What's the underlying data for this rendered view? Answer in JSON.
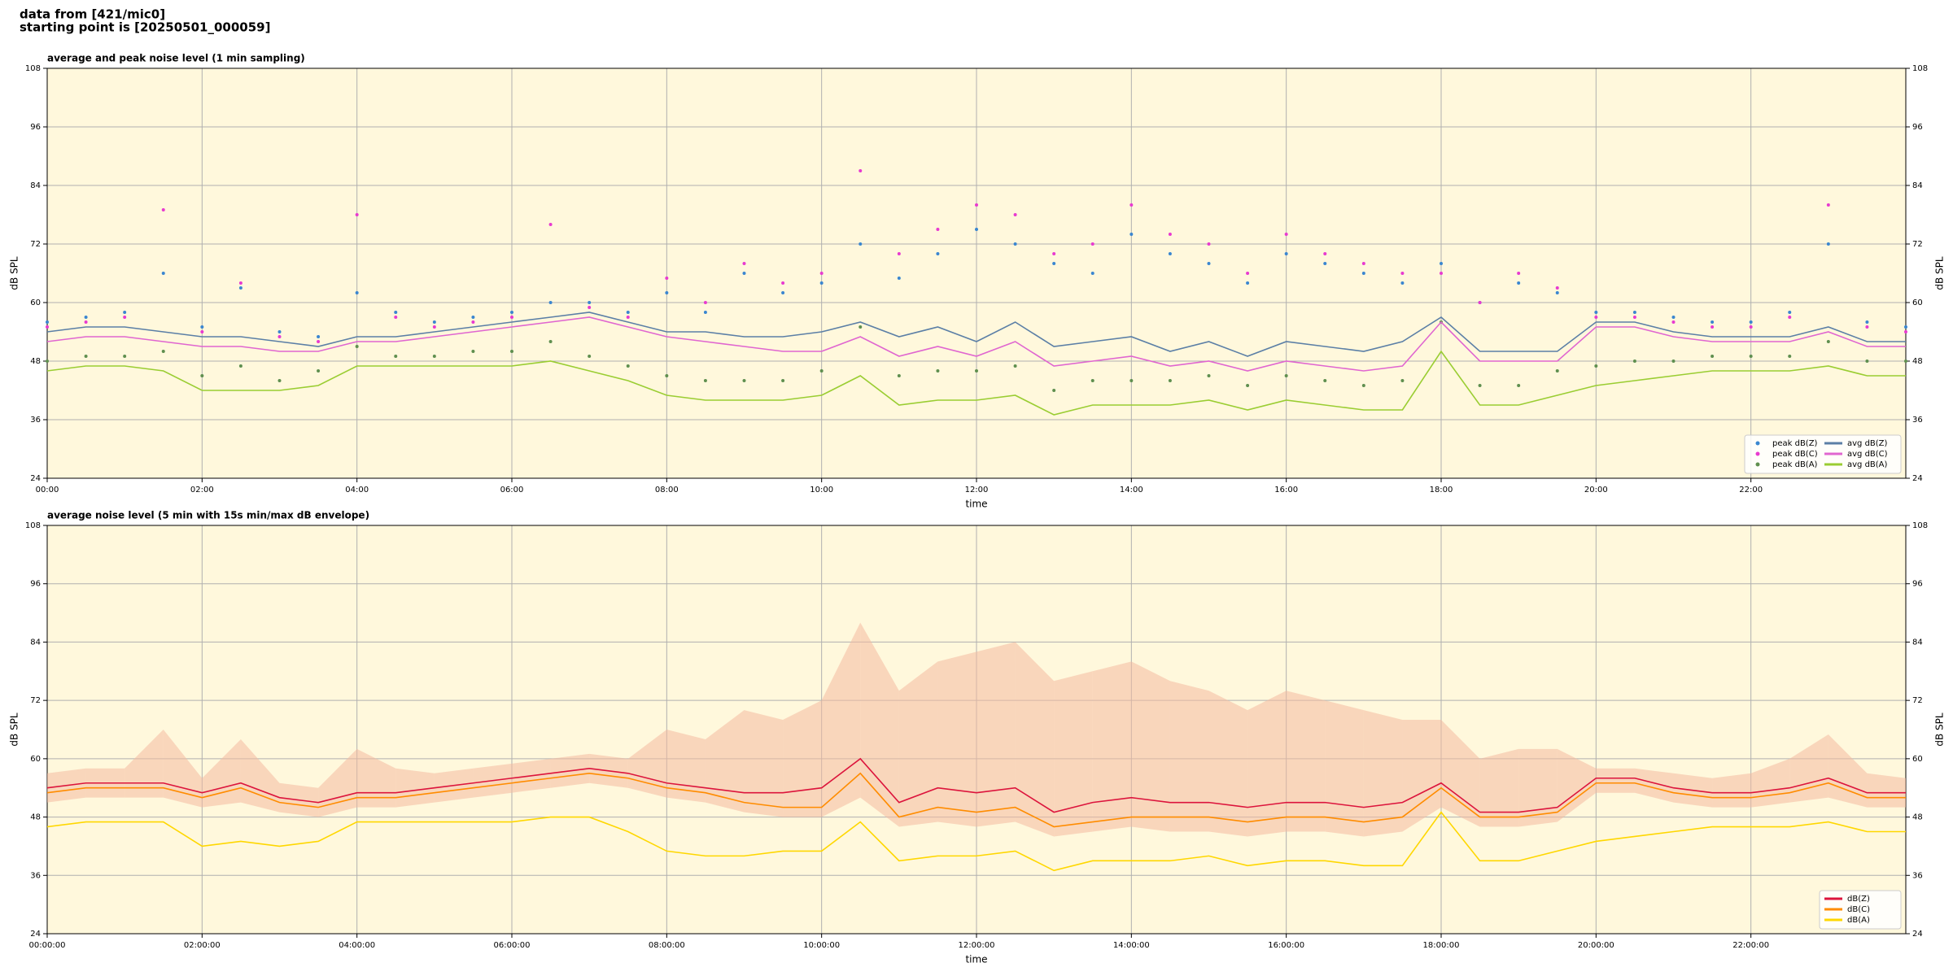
{
  "header": {
    "source": "data from [421/mic0]",
    "start": "starting point is [20250501_000059]"
  },
  "chart_data": [
    {
      "type": "line",
      "title": "average and peak noise level (1 min sampling)",
      "xlabel": "time",
      "ylabel": "dB SPL",
      "y2label": "dB SPL",
      "background": "#fff8dc",
      "grid": true,
      "legend": "lower right",
      "legend_columns": 2,
      "xlim": [
        0,
        24
      ],
      "ylim": [
        24,
        108
      ],
      "yticks": [
        24,
        36,
        48,
        60,
        72,
        84,
        96,
        108
      ],
      "xticks": [
        {
          "value": 0,
          "label": "00:00"
        },
        {
          "value": 2,
          "label": "02:00"
        },
        {
          "value": 4,
          "label": "04:00"
        },
        {
          "value": 6,
          "label": "06:00"
        },
        {
          "value": 8,
          "label": "08:00"
        },
        {
          "value": 10,
          "label": "10:00"
        },
        {
          "value": 12,
          "label": "12:00"
        },
        {
          "value": 14,
          "label": "14:00"
        },
        {
          "value": 16,
          "label": "16:00"
        },
        {
          "value": 18,
          "label": "18:00"
        },
        {
          "value": 20,
          "label": "20:00"
        },
        {
          "value": 22,
          "label": "22:00"
        }
      ],
      "x": [
        0,
        0.5,
        1,
        1.5,
        2,
        2.5,
        3,
        3.5,
        4,
        4.5,
        5,
        5.5,
        6,
        6.5,
        7,
        7.5,
        8,
        8.5,
        9,
        9.5,
        10,
        10.5,
        11,
        11.5,
        12,
        12.5,
        13,
        13.5,
        14,
        14.5,
        15,
        15.5,
        16,
        16.5,
        17,
        17.5,
        18,
        18.5,
        19,
        19.5,
        20,
        20.5,
        21,
        21.5,
        22,
        22.5,
        23,
        23.5,
        24
      ],
      "series": [
        {
          "name": "peak dB(Z)",
          "style": "points",
          "color": "#3a86d0",
          "values": [
            56,
            57,
            58,
            66,
            55,
            63,
            54,
            53,
            62,
            58,
            56,
            57,
            58,
            60,
            60,
            58,
            62,
            58,
            66,
            62,
            64,
            72,
            65,
            70,
            75,
            72,
            68,
            66,
            74,
            70,
            68,
            64,
            70,
            68,
            66,
            64,
            68,
            60,
            64,
            62,
            58,
            58,
            57,
            56,
            56,
            58,
            72,
            56,
            55
          ]
        },
        {
          "name": "peak dB(C)",
          "style": "points",
          "color": "#e83ad0",
          "values": [
            55,
            56,
            57,
            79,
            54,
            64,
            53,
            52,
            78,
            57,
            55,
            56,
            57,
            76,
            59,
            57,
            65,
            60,
            68,
            64,
            66,
            87,
            70,
            75,
            80,
            78,
            70,
            72,
            80,
            74,
            72,
            66,
            74,
            70,
            68,
            66,
            66,
            60,
            66,
            63,
            57,
            57,
            56,
            55,
            55,
            57,
            80,
            55,
            54
          ]
        },
        {
          "name": "peak dB(A)",
          "style": "points",
          "color": "#5f8f4f",
          "values": [
            48,
            49,
            49,
            50,
            45,
            47,
            44,
            46,
            51,
            49,
            49,
            50,
            50,
            52,
            49,
            47,
            45,
            44,
            44,
            44,
            46,
            55,
            45,
            46,
            46,
            47,
            42,
            44,
            44,
            44,
            45,
            43,
            45,
            44,
            43,
            44,
            56,
            43,
            43,
            46,
            47,
            48,
            48,
            49,
            49,
            49,
            52,
            48,
            48
          ]
        },
        {
          "name": "avg dB(Z)",
          "style": "line",
          "color": "#5b7fa6",
          "values": [
            54,
            55,
            55,
            54,
            53,
            53,
            52,
            51,
            53,
            53,
            54,
            55,
            56,
            57,
            58,
            56,
            54,
            54,
            53,
            53,
            54,
            56,
            53,
            55,
            52,
            56,
            51,
            52,
            53,
            50,
            52,
            49,
            52,
            51,
            50,
            52,
            57,
            50,
            50,
            50,
            56,
            56,
            54,
            53,
            53,
            53,
            55,
            52,
            52
          ]
        },
        {
          "name": "avg dB(C)",
          "style": "line",
          "color": "#e066d0",
          "values": [
            52,
            53,
            53,
            52,
            51,
            51,
            50,
            50,
            52,
            52,
            53,
            54,
            55,
            56,
            57,
            55,
            53,
            52,
            51,
            50,
            50,
            53,
            49,
            51,
            49,
            52,
            47,
            48,
            49,
            47,
            48,
            46,
            48,
            47,
            46,
            47,
            56,
            48,
            48,
            48,
            55,
            55,
            53,
            52,
            52,
            52,
            54,
            51,
            51
          ]
        },
        {
          "name": "avg dB(A)",
          "style": "line",
          "color": "#9acd32",
          "values": [
            46,
            47,
            47,
            46,
            42,
            42,
            42,
            43,
            47,
            47,
            47,
            47,
            47,
            48,
            46,
            44,
            41,
            40,
            40,
            40,
            41,
            45,
            39,
            40,
            40,
            41,
            37,
            39,
            39,
            39,
            40,
            38,
            40,
            39,
            38,
            38,
            50,
            39,
            39,
            41,
            43,
            44,
            45,
            46,
            46,
            46,
            47,
            45,
            45
          ]
        }
      ]
    },
    {
      "type": "line",
      "title": "average noise level (5 min with 15s min/max dB envelope)",
      "xlabel": "time",
      "ylabel": "dB SPL",
      "y2label": "dB SPL",
      "background": "#fff8dc",
      "grid": true,
      "legend": "lower right",
      "legend_columns": 1,
      "xlim": [
        0,
        24
      ],
      "ylim": [
        24,
        108
      ],
      "yticks": [
        24,
        36,
        48,
        60,
        72,
        84,
        96,
        108
      ],
      "xticks": [
        {
          "value": 0,
          "label": "00:00:00"
        },
        {
          "value": 2,
          "label": "02:00:00"
        },
        {
          "value": 4,
          "label": "04:00:00"
        },
        {
          "value": 6,
          "label": "06:00:00"
        },
        {
          "value": 8,
          "label": "08:00:00"
        },
        {
          "value": 10,
          "label": "10:00:00"
        },
        {
          "value": 12,
          "label": "12:00:00"
        },
        {
          "value": 14,
          "label": "14:00:00"
        },
        {
          "value": 16,
          "label": "16:00:00"
        },
        {
          "value": 18,
          "label": "18:00:00"
        },
        {
          "value": 20,
          "label": "20:00:00"
        },
        {
          "value": 22,
          "label": "22:00:00"
        }
      ],
      "x": [
        0,
        0.5,
        1,
        1.5,
        2,
        2.5,
        3,
        3.5,
        4,
        4.5,
        5,
        5.5,
        6,
        6.5,
        7,
        7.5,
        8,
        8.5,
        9,
        9.5,
        10,
        10.5,
        11,
        11.5,
        12,
        12.5,
        13,
        13.5,
        14,
        14.5,
        15,
        15.5,
        16,
        16.5,
        17,
        17.5,
        18,
        18.5,
        19,
        19.5,
        20,
        20.5,
        21,
        21.5,
        22,
        22.5,
        23,
        23.5,
        24
      ],
      "envelope": {
        "color": "#f4b9a0",
        "low": [
          51,
          52,
          52,
          52,
          50,
          51,
          49,
          48,
          50,
          50,
          51,
          52,
          53,
          54,
          55,
          54,
          52,
          51,
          49,
          48,
          48,
          52,
          46,
          47,
          46,
          47,
          44,
          45,
          46,
          45,
          45,
          44,
          45,
          45,
          44,
          45,
          50,
          46,
          46,
          47,
          53,
          53,
          51,
          50,
          50,
          51,
          52,
          50,
          50
        ],
        "high": [
          57,
          58,
          58,
          66,
          56,
          64,
          55,
          54,
          62,
          58,
          57,
          58,
          59,
          60,
          61,
          60,
          66,
          64,
          70,
          68,
          72,
          88,
          74,
          80,
          82,
          84,
          76,
          78,
          80,
          76,
          74,
          70,
          74,
          72,
          70,
          68,
          68,
          60,
          62,
          62,
          58,
          58,
          57,
          56,
          57,
          60,
          65,
          57,
          56
        ]
      },
      "series": [
        {
          "name": "dB(Z)",
          "style": "line",
          "color": "#dc143c",
          "values": [
            54,
            55,
            55,
            55,
            53,
            55,
            52,
            51,
            53,
            53,
            54,
            55,
            56,
            57,
            58,
            57,
            55,
            54,
            53,
            53,
            54,
            60,
            51,
            54,
            53,
            54,
            49,
            51,
            52,
            51,
            51,
            50,
            51,
            51,
            50,
            51,
            55,
            49,
            49,
            50,
            56,
            56,
            54,
            53,
            53,
            54,
            56,
            53,
            53
          ]
        },
        {
          "name": "dB(C)",
          "style": "line",
          "color": "#ff8c00",
          "values": [
            53,
            54,
            54,
            54,
            52,
            54,
            51,
            50,
            52,
            52,
            53,
            54,
            55,
            56,
            57,
            56,
            54,
            53,
            51,
            50,
            50,
            57,
            48,
            50,
            49,
            50,
            46,
            47,
            48,
            48,
            48,
            47,
            48,
            48,
            47,
            48,
            54,
            48,
            48,
            49,
            55,
            55,
            53,
            52,
            52,
            53,
            55,
            52,
            52
          ]
        },
        {
          "name": "dB(A)",
          "style": "line",
          "color": "#ffd700",
          "values": [
            46,
            47,
            47,
            47,
            42,
            43,
            42,
            43,
            47,
            47,
            47,
            47,
            47,
            48,
            48,
            45,
            41,
            40,
            40,
            41,
            41,
            47,
            39,
            40,
            40,
            41,
            37,
            39,
            39,
            39,
            40,
            38,
            39,
            39,
            38,
            38,
            49,
            39,
            39,
            41,
            43,
            44,
            45,
            46,
            46,
            46,
            47,
            45,
            45
          ]
        }
      ]
    }
  ]
}
